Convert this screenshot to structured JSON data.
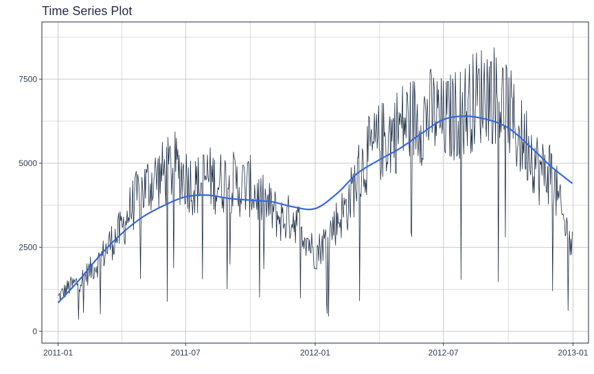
{
  "chart_data": {
    "type": "line",
    "title": "Time Series Plot",
    "xlabel": "",
    "ylabel": "",
    "x_type": "date",
    "x_range": [
      "2011-01-01",
      "2012-12-31"
    ],
    "xlim": [
      "2010-12-09",
      "2013-01-23"
    ],
    "ylim": [
      -350,
      9200
    ],
    "x_ticks": [
      {
        "date": "2011-01-01",
        "label": "2011-01"
      },
      {
        "date": "2011-07-01",
        "label": "2011-07"
      },
      {
        "date": "2012-01-01",
        "label": "2012-01"
      },
      {
        "date": "2012-07-01",
        "label": "2012-07"
      },
      {
        "date": "2013-01-01",
        "label": "2013-01"
      }
    ],
    "y_ticks": [
      0,
      2500,
      5000,
      7500
    ],
    "y_tick_labels": [
      "0",
      "2500",
      "5000",
      "7500"
    ],
    "grid": true,
    "legend": "none",
    "colors": {
      "series": "#1b2b44",
      "smooth": "#3366e0",
      "grid": "#c8c8c8",
      "frame": "#1f2a44"
    },
    "series": [
      {
        "kind": "daily-values",
        "x": [
          "2011-01-01",
          "2011-01-15",
          "2011-02-01",
          "2011-02-15",
          "2011-03-01",
          "2011-03-15",
          "2011-04-01",
          "2011-04-15",
          "2011-05-01",
          "2011-05-15",
          "2011-06-01",
          "2011-06-15",
          "2011-07-01",
          "2011-07-15",
          "2011-08-01",
          "2011-08-15",
          "2011-09-01",
          "2011-09-15",
          "2011-10-01",
          "2011-10-15",
          "2011-11-01",
          "2011-11-15",
          "2011-12-01",
          "2011-12-15",
          "2012-01-01",
          "2012-01-15",
          "2012-02-01",
          "2012-02-15",
          "2012-03-01",
          "2012-03-15",
          "2012-04-01",
          "2012-04-15",
          "2012-05-01",
          "2012-05-15",
          "2012-06-01",
          "2012-06-15",
          "2012-07-01",
          "2012-07-15",
          "2012-08-01",
          "2012-08-15",
          "2012-09-01",
          "2012-09-15",
          "2012-10-01",
          "2012-10-15",
          "2012-11-01",
          "2012-11-15",
          "2012-12-01",
          "2012-12-15",
          "2012-12-31"
        ],
        "values": [
          1000,
          1300,
          1500,
          1800,
          2100,
          2600,
          3000,
          3700,
          4200,
          4500,
          4700,
          4900,
          4600,
          4300,
          4600,
          4400,
          4500,
          4300,
          4300,
          3900,
          3600,
          3300,
          3400,
          3000,
          2300,
          2700,
          3300,
          3700,
          4600,
          5200,
          5600,
          5800,
          6100,
          6300,
          6300,
          6500,
          6200,
          6400,
          6600,
          6900,
          7200,
          7000,
          6600,
          5800,
          5500,
          4700,
          4800,
          3500,
          2500
        ]
      },
      {
        "kind": "smooth",
        "x": [
          "2011-01-01",
          "2011-02-01",
          "2011-03-01",
          "2011-04-01",
          "2011-05-01",
          "2011-06-01",
          "2011-07-01",
          "2011-08-01",
          "2011-09-01",
          "2011-10-01",
          "2011-11-01",
          "2011-12-01",
          "2012-01-01",
          "2012-02-01",
          "2012-03-01",
          "2012-04-01",
          "2012-05-01",
          "2012-06-01",
          "2012-07-01",
          "2012-08-01",
          "2012-09-01",
          "2012-10-01",
          "2012-11-01",
          "2012-12-01",
          "2012-12-31"
        ],
        "values": [
          850,
          1550,
          2250,
          2900,
          3400,
          3750,
          4000,
          4050,
          3950,
          3900,
          3850,
          3700,
          3650,
          4100,
          4700,
          5100,
          5450,
          5900,
          6300,
          6400,
          6300,
          6050,
          5500,
          4900,
          4400
        ]
      }
    ]
  }
}
